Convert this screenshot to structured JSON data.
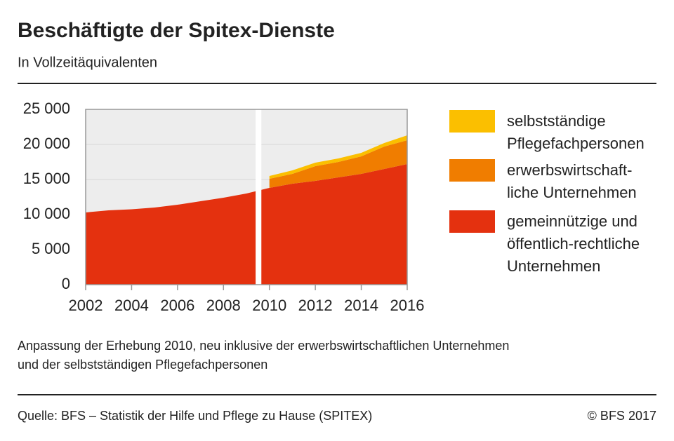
{
  "chart_data": {
    "type": "stacked_area",
    "title": "Beschäftigte der Spitex-Dienste",
    "subtitle": "In Vollzeitäquivalenten",
    "note": "Anpassung der Erhebung 2010, neu inklusive der erwerbswirtschaftlichen Unternehmen\nund der selbstständigen Pflegefachpersonen",
    "source": "Quelle: BFS – Statistik der Hilfe und Pflege zu Hause (SPITEX)",
    "copyright": "© BFS 2017",
    "x": [
      2002,
      2003,
      2004,
      2005,
      2006,
      2007,
      2008,
      2009,
      2010,
      2011,
      2012,
      2013,
      2014,
      2015,
      2016
    ],
    "series": [
      {
        "name": "selbstständige\nPflegefachpersonen",
        "color": "#fbbf00",
        "values": [
          null,
          null,
          null,
          null,
          null,
          null,
          null,
          null,
          400,
          500,
          500,
          500,
          500,
          500,
          700
        ]
      },
      {
        "name": "erwerbswirtschaft-\nliche Unternehmen",
        "color": "#f07d00",
        "values": [
          null,
          null,
          null,
          null,
          null,
          null,
          null,
          null,
          1300,
          1400,
          2100,
          2200,
          2500,
          3200,
          3400
        ]
      },
      {
        "name": "gemeinnützige und\nöffentlich-rechtliche\nUnternehmen",
        "color": "#e4310f",
        "values": [
          10300,
          10600,
          10750,
          11000,
          11400,
          11900,
          12400,
          13000,
          13800,
          14400,
          14800,
          15300,
          15800,
          16500,
          17200
        ]
      }
    ],
    "xlim": [
      2002,
      2016
    ],
    "xticks": [
      2002,
      2004,
      2006,
      2008,
      2010,
      2012,
      2014,
      2016
    ],
    "ylim": [
      0,
      25000
    ],
    "yticks": [
      0,
      {
        "value": 5000,
        "label": "5 000"
      },
      {
        "value": 10000,
        "label": "10 000"
      },
      {
        "value": 15000,
        "label": "15 000"
      },
      {
        "value": 20000,
        "label": "20 000"
      },
      {
        "value": 25000,
        "label": "25 000"
      }
    ],
    "grid": true
  }
}
